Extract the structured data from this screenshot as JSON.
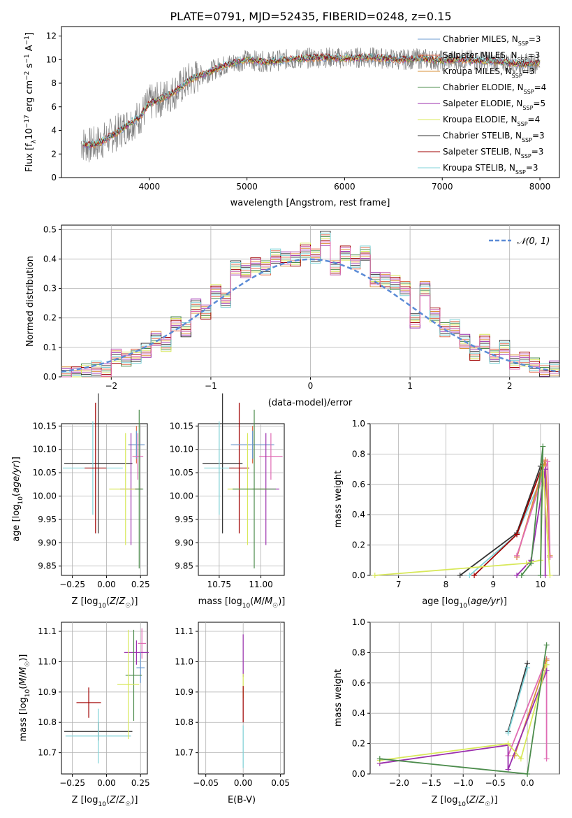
{
  "figure": {
    "title": "PLATE=0791, MJD=52435, FIBERID=0248, z=0.15"
  },
  "chart_data": [
    {
      "id": "spectrum",
      "type": "line",
      "xlabel": "wavelength [Angstrom, rest frame]",
      "ylabel": "Flux [f_λ 10^-17 erg cm^-2 s^-1 A^-1]",
      "xlim": [
        3100,
        8200
      ],
      "ylim": [
        0,
        12.8
      ],
      "xticks": [
        4000,
        5000,
        6000,
        7000,
        8000
      ],
      "yticks": [
        0,
        2,
        4,
        6,
        8,
        10,
        12
      ],
      "grid": false,
      "legend_position": "right",
      "data_envelope": {
        "x": [
          3300,
          3400,
          3500,
          3600,
          3700,
          3800,
          3900,
          4000,
          4100,
          4200,
          4300,
          4400,
          4500,
          4600,
          4700,
          4800,
          4900,
          5000,
          5200,
          5400,
          5600,
          5800,
          6000,
          6200,
          6400,
          6600,
          6800,
          7000,
          7200,
          7400,
          7600,
          7800,
          8000
        ],
        "y": [
          2.9,
          2.7,
          3.0,
          3.5,
          4.0,
          4.6,
          5.1,
          6.3,
          6.6,
          7.0,
          7.5,
          8.2,
          8.6,
          8.9,
          9.3,
          9.6,
          9.8,
          10.0,
          9.8,
          10.0,
          10.1,
          10.2,
          10.1,
          10.2,
          10.1,
          10.0,
          10.1,
          9.9,
          10.0,
          9.9,
          9.8,
          9.6,
          9.7
        ]
      },
      "legend": [
        {
          "label": "Chabrier MILES, N_SSP=3",
          "color": "#6b9bd1"
        },
        {
          "label": "Salpeter MILES, N_SSP=3",
          "color": "#e06c4c"
        },
        {
          "label": "Kroupa MILES, N_SSP=3",
          "color": "#d9923a"
        },
        {
          "label": "Chabrier ELODIE, N_SSP=4",
          "color": "#4c8c4c"
        },
        {
          "label": "Salpeter ELODIE, N_SSP=5",
          "color": "#9b2fae"
        },
        {
          "label": "Kroupa ELODIE, N_SSP=4",
          "color": "#d8e85a"
        },
        {
          "label": "Chabrier STELIB, N_SSP=3",
          "color": "#333333"
        },
        {
          "label": "Salpeter STELIB, N_SSP=3",
          "color": "#a00000"
        },
        {
          "label": "Kroupa STELIB, N_SSP=3",
          "color": "#7fd3d8"
        }
      ]
    },
    {
      "id": "residuals",
      "type": "line",
      "xlabel": "(data-model)/error",
      "ylabel": "Normed distribution",
      "xlim": [
        -2.5,
        2.5
      ],
      "ylim": [
        0,
        0.515
      ],
      "xticks": [
        -2,
        -1,
        0,
        1,
        2
      ],
      "yticks": [
        0.0,
        0.1,
        0.2,
        0.3,
        0.4,
        0.5
      ],
      "grid": true,
      "legend_position": "top-right",
      "legend_label": "𝒩(0, 1)",
      "histogram_bins": [
        -2.5,
        -2.4,
        -2.3,
        -2.2,
        -2.1,
        -2.0,
        -1.9,
        -1.8,
        -1.7,
        -1.6,
        -1.5,
        -1.4,
        -1.3,
        -1.2,
        -1.1,
        -1.0,
        -0.9,
        -0.8,
        -0.7,
        -0.6,
        -0.5,
        -0.4,
        -0.3,
        -0.2,
        -0.1,
        0.0,
        0.1,
        0.2,
        0.3,
        0.4,
        0.5,
        0.6,
        0.7,
        0.8,
        0.9,
        1.0,
        1.1,
        1.2,
        1.3,
        1.4,
        1.5,
        1.6,
        1.7,
        1.8,
        1.9,
        2.0,
        2.1,
        2.2,
        2.3,
        2.4
      ],
      "histogram_values": [
        0.01,
        0.01,
        0.02,
        0.03,
        0.02,
        0.07,
        0.06,
        0.07,
        0.09,
        0.13,
        0.11,
        0.18,
        0.16,
        0.24,
        0.22,
        0.29,
        0.26,
        0.37,
        0.36,
        0.38,
        0.37,
        0.41,
        0.4,
        0.4,
        0.43,
        0.41,
        0.47,
        0.37,
        0.42,
        0.39,
        0.42,
        0.33,
        0.33,
        0.32,
        0.3,
        0.19,
        0.3,
        0.21,
        0.16,
        0.17,
        0.12,
        0.08,
        0.12,
        0.07,
        0.1,
        0.05,
        0.06,
        0.04,
        0.02,
        0.03
      ]
    },
    {
      "id": "age-vs-Z",
      "type": "scatter",
      "xlabel": "Z [log10(Z/Z☉)]",
      "ylabel": "age  [log10(age/yr)]",
      "xlim": [
        -0.33,
        0.3
      ],
      "ylim": [
        9.83,
        10.155
      ],
      "xticks": [
        -0.25,
        0.0,
        0.25
      ],
      "xticklabels": [
        "−0.25",
        "0.00",
        "0.25"
      ],
      "yticks": [
        9.85,
        9.9,
        9.95,
        10.0,
        10.05,
        10.1,
        10.15
      ],
      "grid": true,
      "points": [
        {
          "x": -0.06,
          "y": 10.07,
          "xerr": 0.25,
          "yerr": 0.15,
          "color": "#333333"
        },
        {
          "x": -0.1,
          "y": 10.06,
          "xerr": 0.22,
          "yerr": 0.1,
          "color": "#7fd3d8"
        },
        {
          "x": -0.08,
          "y": 10.06,
          "xerr": 0.08,
          "yerr": 0.14,
          "color": "#a00000"
        },
        {
          "x": 0.22,
          "y": 10.11,
          "xerr": 0.06,
          "yerr": 0.04,
          "color": "#e06c4c"
        },
        {
          "x": 0.22,
          "y": 10.11,
          "xerr": 0.06,
          "yerr": 0.03,
          "color": "#6b9bd1"
        },
        {
          "x": 0.23,
          "y": 10.085,
          "xerr": 0.04,
          "yerr": 0.05,
          "color": "#e06cb4"
        },
        {
          "x": 0.18,
          "y": 10.015,
          "xerr": 0.08,
          "yerr": 0.12,
          "color": "#9b2fae"
        },
        {
          "x": 0.14,
          "y": 10.015,
          "xerr": 0.12,
          "yerr": 0.12,
          "color": "#d8e85a"
        },
        {
          "x": 0.24,
          "y": 10.015,
          "xerr": 0.03,
          "yerr": 0.17,
          "color": "#4c8c4c"
        }
      ]
    },
    {
      "id": "age-vs-mass",
      "type": "scatter",
      "xlabel": "mass [log10(M/M☉)]",
      "ylabel": "",
      "xlim": [
        10.625,
        11.14
      ],
      "ylim": [
        9.83,
        10.155
      ],
      "xticks": [
        10.75,
        11.0
      ],
      "xticklabels": [
        "10.75",
        "11.00"
      ],
      "yticks": [
        9.85,
        9.9,
        9.95,
        10.0,
        10.05,
        10.1,
        10.15
      ],
      "grid": true,
      "points": [
        {
          "x": 10.77,
          "y": 10.07,
          "xerr": 0.12,
          "yerr": 0.15,
          "color": "#333333"
        },
        {
          "x": 10.75,
          "y": 10.06,
          "xerr": 0.09,
          "yerr": 0.1,
          "color": "#7fd3d8"
        },
        {
          "x": 10.87,
          "y": 10.06,
          "xerr": 0.06,
          "yerr": 0.14,
          "color": "#a00000"
        },
        {
          "x": 10.95,
          "y": 10.11,
          "xerr": 0.12,
          "yerr": 0.04,
          "color": "#e06c4c"
        },
        {
          "x": 10.95,
          "y": 10.11,
          "xerr": 0.13,
          "yerr": 0.03,
          "color": "#6b9bd1"
        },
        {
          "x": 11.06,
          "y": 10.085,
          "xerr": 0.07,
          "yerr": 0.05,
          "color": "#e06cb4"
        },
        {
          "x": 11.03,
          "y": 10.015,
          "xerr": 0.08,
          "yerr": 0.12,
          "color": "#9b2fae"
        },
        {
          "x": 10.92,
          "y": 10.015,
          "xerr": 0.12,
          "yerr": 0.12,
          "color": "#d8e85a"
        },
        {
          "x": 10.96,
          "y": 10.015,
          "xerr": 0.13,
          "yerr": 0.17,
          "color": "#4c8c4c"
        }
      ]
    },
    {
      "id": "weight-vs-age",
      "type": "line",
      "xlabel": "age  [log10(age/yr)]",
      "ylabel": "mass weight",
      "xlim": [
        6.4,
        10.4
      ],
      "ylim": [
        0,
        1.0
      ],
      "xticks": [
        7,
        8,
        9,
        10
      ],
      "yticks": [
        0.0,
        0.2,
        0.4,
        0.6,
        0.8,
        1.0
      ],
      "grid": true,
      "series": [
        {
          "color": "#333333",
          "points": [
            [
              8.3,
              0.0
            ],
            [
              9.5,
              0.28
            ],
            [
              10.0,
              0.72
            ]
          ]
        },
        {
          "color": "#7fd3d8",
          "points": [
            [
              8.5,
              0.0
            ],
            [
              9.5,
              0.27
            ],
            [
              10.1,
              0.7
            ]
          ]
        },
        {
          "color": "#a00000",
          "points": [
            [
              8.6,
              0.0
            ],
            [
              9.5,
              0.27
            ],
            [
              10.05,
              0.73
            ]
          ]
        },
        {
          "color": "#e06c4c",
          "points": [
            [
              9.5,
              0.12
            ],
            [
              10.1,
              0.76
            ],
            [
              10.2,
              0.12
            ]
          ]
        },
        {
          "color": "#d9923a",
          "points": [
            [
              9.5,
              0.12
            ],
            [
              10.1,
              0.75
            ],
            [
              10.2,
              0.13
            ]
          ]
        },
        {
          "color": "#e06cb4",
          "points": [
            [
              9.5,
              0.13
            ],
            [
              10.15,
              0.75
            ],
            [
              10.2,
              0.12
            ]
          ]
        },
        {
          "color": "#9b2fae",
          "points": [
            [
              9.5,
              0.0
            ],
            [
              9.8,
              0.1
            ],
            [
              10.1,
              0.7
            ],
            [
              10.1,
              0.0
            ]
          ]
        },
        {
          "color": "#d8e85a",
          "points": [
            [
              6.5,
              0.0
            ],
            [
              9.7,
              0.08
            ],
            [
              10.0,
              0.1
            ],
            [
              10.05,
              0.72
            ],
            [
              10.2,
              0.0
            ]
          ]
        },
        {
          "color": "#4c8c4c",
          "points": [
            [
              9.6,
              0.0
            ],
            [
              9.8,
              0.08
            ],
            [
              10.05,
              0.85
            ],
            [
              10.0,
              0.0
            ]
          ]
        }
      ]
    },
    {
      "id": "mass-vs-Z",
      "type": "scatter",
      "xlabel": "Z [log10(Z/Z☉)]",
      "ylabel": "mass [log10(M/M☉)]",
      "xlim": [
        -0.33,
        0.3
      ],
      "ylim": [
        10.63,
        11.13
      ],
      "xticks": [
        -0.25,
        0.0,
        0.25
      ],
      "xticklabels": [
        "−0.25",
        "0.00",
        "0.25"
      ],
      "yticks": [
        10.7,
        10.8,
        10.9,
        11.0,
        11.1
      ],
      "grid": true,
      "points": [
        {
          "x": -0.06,
          "y": 10.77,
          "xerr": 0.25,
          "yerr": 0.03,
          "color": "#333333"
        },
        {
          "x": -0.06,
          "y": 10.755,
          "xerr": 0.24,
          "yerr": 0.09,
          "color": "#7fd3d8"
        },
        {
          "x": -0.13,
          "y": 10.865,
          "xerr": 0.09,
          "yerr": 0.05,
          "color": "#a00000"
        },
        {
          "x": 0.26,
          "y": 11.06,
          "xerr": 0.03,
          "yerr": 0.05,
          "color": "#e06cb4"
        },
        {
          "x": 0.22,
          "y": 11.03,
          "xerr": 0.09,
          "yerr": 0.04,
          "color": "#9b2fae"
        },
        {
          "x": 0.25,
          "y": 10.98,
          "xerr": 0.03,
          "yerr": 0.05,
          "color": "#6b9bd1"
        },
        {
          "x": 0.2,
          "y": 10.955,
          "xerr": 0.06,
          "yerr": 0.15,
          "color": "#4c8c4c"
        },
        {
          "x": 0.16,
          "y": 10.925,
          "xerr": 0.08,
          "yerr": 0.18,
          "color": "#d8e85a"
        }
      ]
    },
    {
      "id": "mass-vs-EBV",
      "type": "scatter",
      "xlabel": "E(B-V)",
      "ylabel": "",
      "xlim": [
        -0.06,
        0.055
      ],
      "ylim": [
        10.63,
        11.13
      ],
      "xticks": [
        -0.05,
        0.0,
        0.05
      ],
      "xticklabels": [
        "−0.05",
        "0.00",
        "0.05"
      ],
      "yticks": [
        10.7,
        10.8,
        10.9,
        11.0,
        11.1
      ],
      "grid": true,
      "points": [
        {
          "x": 0.0,
          "y": 11.02,
          "xerr": 0,
          "yerr": 0.07,
          "color": "#9b2fae"
        },
        {
          "x": 0.0,
          "y": 10.92,
          "xerr": 0,
          "yerr": 0.04,
          "color": "#d8e85a"
        },
        {
          "x": 0.0,
          "y": 10.86,
          "xerr": 0,
          "yerr": 0.06,
          "color": "#a00000"
        },
        {
          "x": 0.0,
          "y": 10.72,
          "xerr": 0,
          "yerr": 0.07,
          "color": "#7fd3d8"
        }
      ]
    },
    {
      "id": "weight-vs-Z",
      "type": "line",
      "xlabel": "Z [log10(Z/Z☉)]",
      "ylabel": "mass weight",
      "xlim": [
        -2.45,
        0.5
      ],
      "ylim": [
        0,
        1.0
      ],
      "xticks": [
        -2.0,
        -1.5,
        -1.0,
        -0.5,
        0.0
      ],
      "xticklabels": [
        "−2.0",
        "−1.5",
        "−1.0",
        "−0.5",
        "0.0"
      ],
      "yticks": [
        0.0,
        0.2,
        0.4,
        0.6,
        0.8,
        1.0
      ],
      "grid": true,
      "series": [
        {
          "color": "#333333",
          "points": [
            [
              -0.3,
              0.28
            ],
            [
              0.0,
              0.73
            ]
          ]
        },
        {
          "color": "#7fd3d8",
          "points": [
            [
              -0.3,
              0.27
            ],
            [
              0.0,
              0.7
            ]
          ]
        },
        {
          "color": "#e06cb4",
          "points": [
            [
              -0.3,
              0.12
            ],
            [
              0.3,
              0.76
            ],
            [
              0.3,
              0.1
            ]
          ]
        },
        {
          "color": "#d9923a",
          "points": [
            [
              -0.2,
              0.12
            ],
            [
              0.3,
              0.75
            ]
          ]
        },
        {
          "color": "#9b2fae",
          "points": [
            [
              -2.3,
              0.07
            ],
            [
              -0.3,
              0.19
            ],
            [
              -0.3,
              0.03
            ],
            [
              0.3,
              0.68
            ]
          ]
        },
        {
          "color": "#d8e85a",
          "points": [
            [
              -2.3,
              0.09
            ],
            [
              -0.3,
              0.2
            ],
            [
              -0.1,
              0.1
            ],
            [
              0.3,
              0.72
            ]
          ]
        },
        {
          "color": "#4c8c4c",
          "points": [
            [
              -2.3,
              0.1
            ],
            [
              0.0,
              0.0
            ],
            [
              0.3,
              0.85
            ]
          ]
        }
      ]
    }
  ]
}
